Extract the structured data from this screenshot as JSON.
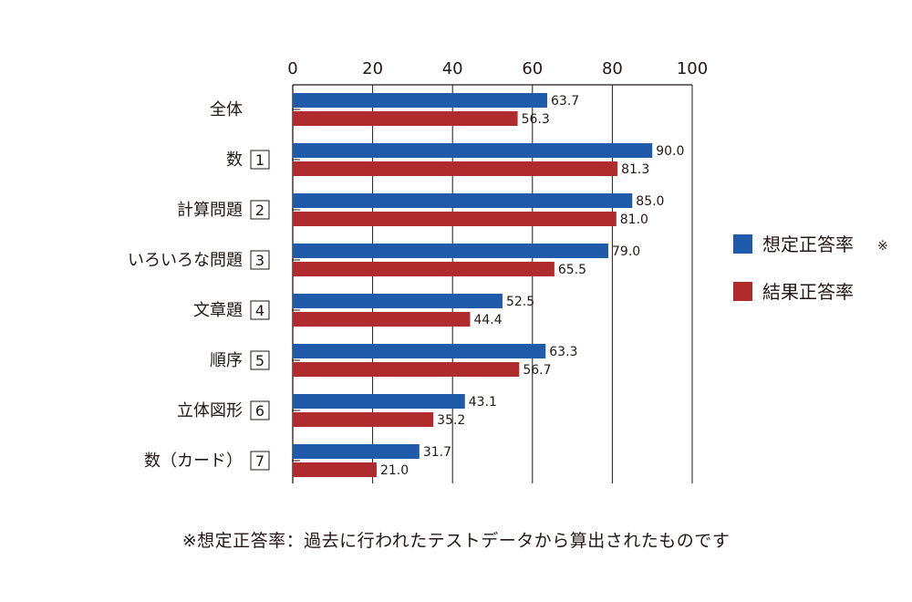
{
  "chart_data": {
    "type": "bar",
    "orientation": "horizontal",
    "title": "",
    "xlabel": "",
    "ylabel": "",
    "xlim": [
      0,
      100
    ],
    "xticks": [
      "0",
      "20",
      "40",
      "60",
      "80",
      "100"
    ],
    "grid": true,
    "legend_position": "right",
    "categories": [
      {
        "label": "全体",
        "number": ""
      },
      {
        "label": "数",
        "number": "1"
      },
      {
        "label": "計算問題",
        "number": "2"
      },
      {
        "label": "いろいろな問題",
        "number": "3"
      },
      {
        "label": "文章題",
        "number": "4"
      },
      {
        "label": "順序",
        "number": "5"
      },
      {
        "label": "立体図形",
        "number": "6"
      },
      {
        "label": "数（カード）",
        "number": "7"
      }
    ],
    "series": [
      {
        "name": "想定正答率",
        "legend_suffix": "※",
        "color": "#1f5ba8",
        "values": [
          63.7,
          90.0,
          85.0,
          79.0,
          52.5,
          63.3,
          43.1,
          31.7
        ],
        "labels": [
          "63.7",
          "90.0",
          "85.0",
          "79.0",
          "52.5",
          "63.3",
          "43.1",
          "31.7"
        ]
      },
      {
        "name": "結果正答率",
        "legend_suffix": "",
        "color": "#b02b2e",
        "values": [
          56.3,
          81.3,
          81.0,
          65.5,
          44.4,
          56.7,
          35.2,
          21.0
        ],
        "labels": [
          "56.3",
          "81.3",
          "81.0",
          "65.5",
          "44.4",
          "56.7",
          "35.2",
          "21.0"
        ]
      }
    ]
  },
  "footnote": "※想定正答率：過去に行われたテストデータから算出されたものです"
}
